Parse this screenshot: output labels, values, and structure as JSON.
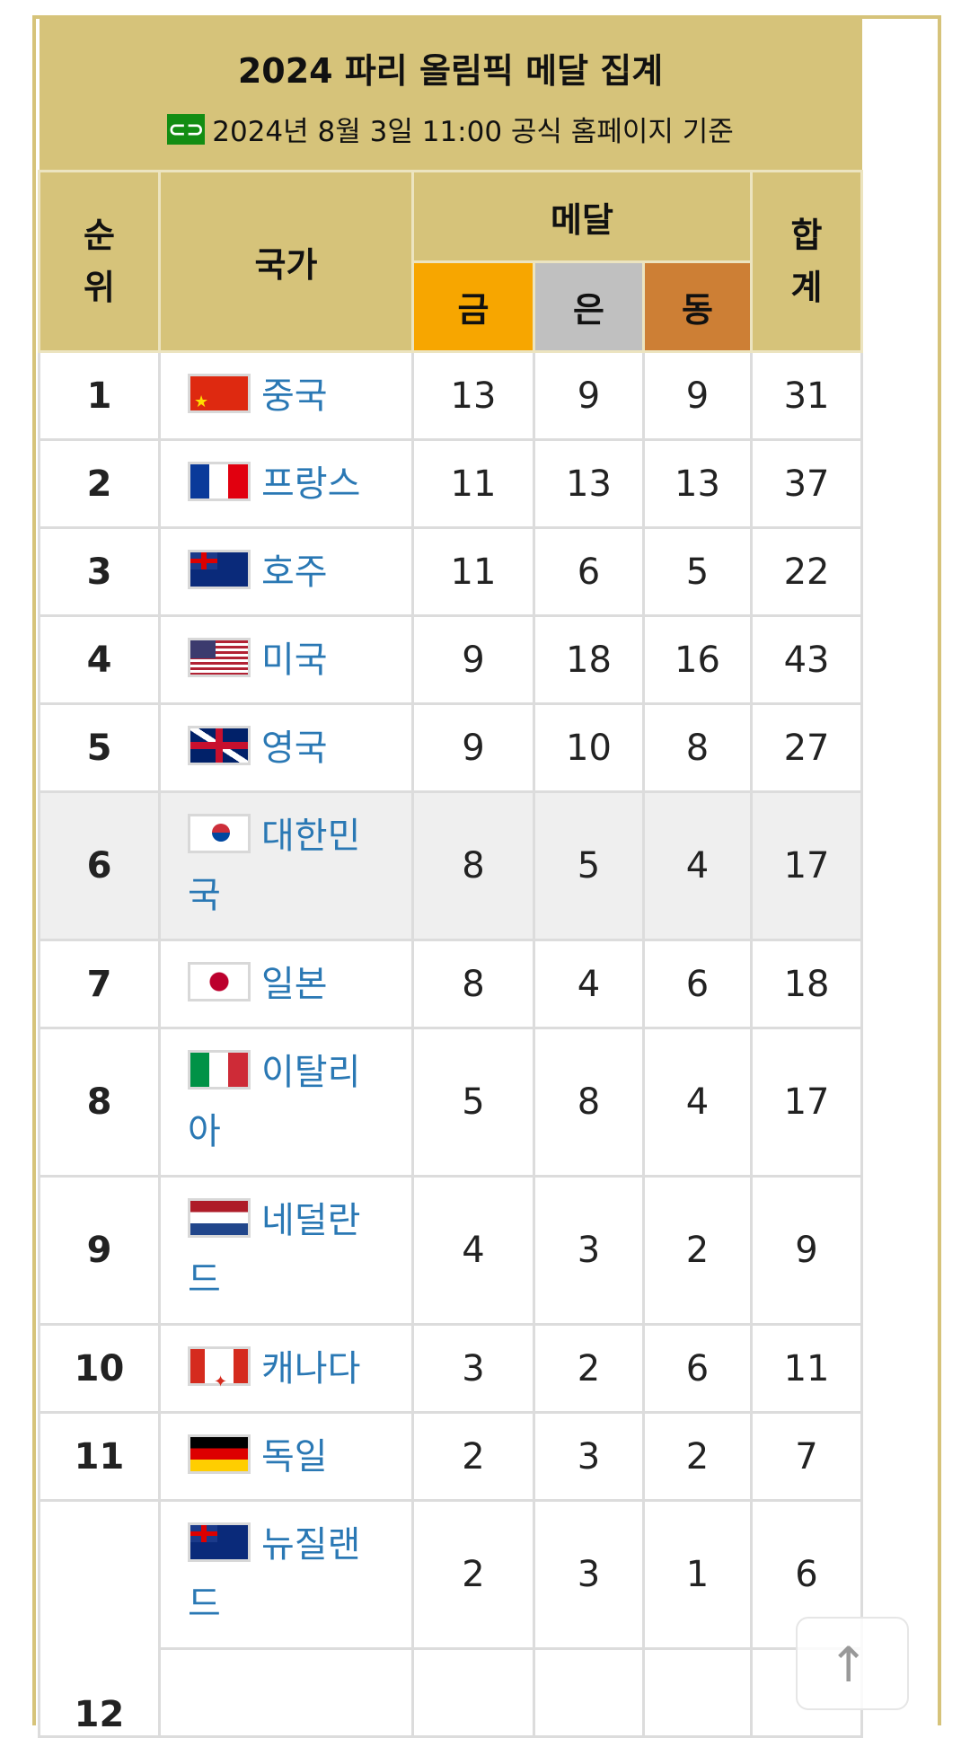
{
  "title": "2024 파리 올림픽 메달 집계",
  "subtitle": "2024년 8월 3일 11:00 공식 홈페이지 기준",
  "link_icon": "link-icon",
  "headers": {
    "rank": "순위",
    "country": "국가",
    "medal": "메달",
    "gold": "금",
    "silver": "은",
    "bronze": "동",
    "total": "합계"
  },
  "colors": {
    "header": "#d6c37a",
    "gold": "#f7a600",
    "silver": "#c0c0c0",
    "bronze": "#cd7f35",
    "link": "#2a78b4",
    "highlight": "#efefef"
  },
  "rows": [
    {
      "rank": "1",
      "flag": "cn",
      "country": "중국",
      "gold": "13",
      "silver": "9",
      "bronze": "9",
      "total": "31"
    },
    {
      "rank": "2",
      "flag": "fr",
      "country": "프랑스",
      "gold": "11",
      "silver": "13",
      "bronze": "13",
      "total": "37"
    },
    {
      "rank": "3",
      "flag": "au",
      "country": "호주",
      "gold": "11",
      "silver": "6",
      "bronze": "5",
      "total": "22"
    },
    {
      "rank": "4",
      "flag": "us",
      "country": "미국",
      "gold": "9",
      "silver": "18",
      "bronze": "16",
      "total": "43"
    },
    {
      "rank": "5",
      "flag": "gb",
      "country": "영국",
      "gold": "9",
      "silver": "10",
      "bronze": "8",
      "total": "27"
    },
    {
      "rank": "6",
      "flag": "kr",
      "country": "대한민국",
      "gold": "8",
      "silver": "5",
      "bronze": "4",
      "total": "17",
      "highlight": true
    },
    {
      "rank": "7",
      "flag": "jp",
      "country": "일본",
      "gold": "8",
      "silver": "4",
      "bronze": "6",
      "total": "18"
    },
    {
      "rank": "8",
      "flag": "it",
      "country": "이탈리아",
      "gold": "5",
      "silver": "8",
      "bronze": "4",
      "total": "17"
    },
    {
      "rank": "9",
      "flag": "nl",
      "country": "네덜란드",
      "gold": "4",
      "silver": "3",
      "bronze": "2",
      "total": "9"
    },
    {
      "rank": "10",
      "flag": "ca",
      "country": "캐나다",
      "gold": "3",
      "silver": "2",
      "bronze": "6",
      "total": "11"
    },
    {
      "rank": "11",
      "flag": "de",
      "country": "독일",
      "gold": "2",
      "silver": "3",
      "bronze": "2",
      "total": "7"
    },
    {
      "rank": "12",
      "flag": "nz",
      "country": "뉴질랜드",
      "gold": "2",
      "silver": "3",
      "bronze": "1",
      "total": "6",
      "rowspan": 2
    }
  ],
  "scroll_top_icon": "arrow-up-icon"
}
